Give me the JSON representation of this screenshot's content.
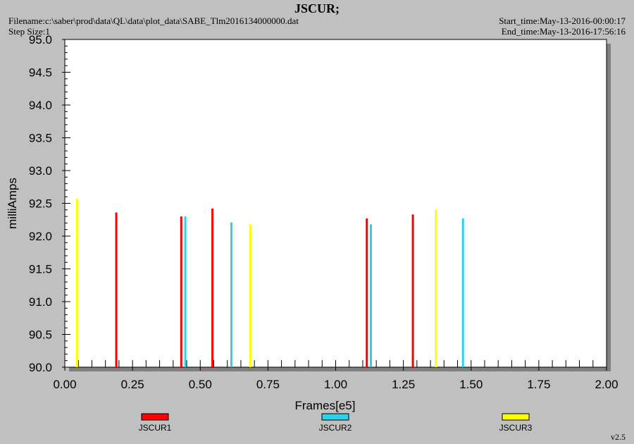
{
  "header": {
    "title": "JSCUR;",
    "filename": "Filename:c:\\saber\\prod\\data\\QL\\data\\plot_data\\SABE_Tlm2016134000000.dat",
    "step_size": "Step Size:1",
    "start_time": "Start_time:May-13-2016-00:00:17",
    "end_time": "End_time:May-13-2016-17:56:16"
  },
  "version": "v2.5",
  "chart_data": {
    "type": "bar",
    "xlabel": "Frames[e5]",
    "ylabel": "milliAmps",
    "xlim": [
      0.0,
      2.0
    ],
    "ylim": [
      90.0,
      95.0
    ],
    "x_ticks": [
      "0.00",
      "0.25",
      "0.50",
      "0.75",
      "1.00",
      "1.25",
      "1.50",
      "1.75",
      "2.00"
    ],
    "y_ticks": [
      "90.0",
      "90.5",
      "91.0",
      "91.5",
      "92.0",
      "92.5",
      "93.0",
      "93.5",
      "94.0",
      "94.5",
      "95.0"
    ],
    "legend_position": "bottom",
    "series": [
      {
        "name": "JSCUR1",
        "color": "#ff0000",
        "points": [
          {
            "x": 0.19,
            "y": 92.36
          },
          {
            "x": 0.43,
            "y": 92.3
          },
          {
            "x": 0.545,
            "y": 92.42
          },
          {
            "x": 1.115,
            "y": 92.27
          },
          {
            "x": 1.285,
            "y": 92.33
          }
        ]
      },
      {
        "name": "JSCUR2",
        "color": "#2ad2e8",
        "points": [
          {
            "x": 0.445,
            "y": 92.3
          },
          {
            "x": 0.615,
            "y": 92.21
          },
          {
            "x": 1.13,
            "y": 92.18
          },
          {
            "x": 1.47,
            "y": 92.27
          }
        ]
      },
      {
        "name": "JSCUR3",
        "color": "#ffff00",
        "points": [
          {
            "x": 0.045,
            "y": 92.57
          },
          {
            "x": 0.685,
            "y": 92.18
          },
          {
            "x": 1.37,
            "y": 92.4
          }
        ]
      }
    ]
  }
}
